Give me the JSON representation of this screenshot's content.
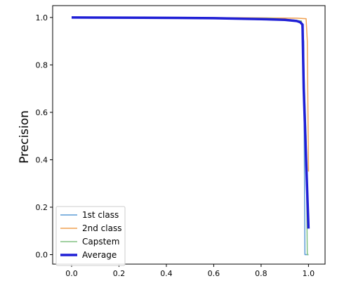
{
  "chart_data": {
    "type": "line",
    "title": "",
    "xlabel": "",
    "ylabel": "Precision",
    "xlim": [
      -0.08,
      1.07
    ],
    "ylim": [
      -0.04,
      1.05
    ],
    "xticks": [
      "0.0",
      "0.2",
      "0.4",
      "0.6",
      "0.8",
      "1.0"
    ],
    "yticks": [
      "0.0",
      "0.2",
      "0.4",
      "0.6",
      "0.8",
      "1.0"
    ],
    "xtick_values": [
      0.0,
      0.2,
      0.4,
      0.6,
      0.8,
      1.0
    ],
    "ytick_values": [
      0.0,
      0.2,
      0.4,
      0.6,
      0.8,
      1.0
    ],
    "grid": false,
    "legend_position": "bottom-left",
    "series": [
      {
        "name": "1st class",
        "color": "#5b9bd5",
        "width": 1.5,
        "points": [
          [
            0.0,
            1.0
          ],
          [
            0.3,
            1.0
          ],
          [
            0.6,
            0.998
          ],
          [
            0.8,
            0.995
          ],
          [
            0.9,
            0.99
          ],
          [
            0.95,
            0.985
          ],
          [
            0.97,
            0.975
          ],
          [
            0.98,
            0.9
          ],
          [
            0.985,
            0.0
          ],
          [
            1.0,
            0.0
          ]
        ]
      },
      {
        "name": "2nd class",
        "color": "#f0a050",
        "width": 1.5,
        "points": [
          [
            0.0,
            1.0
          ],
          [
            0.4,
            1.0
          ],
          [
            0.7,
            0.999
          ],
          [
            0.85,
            0.998
          ],
          [
            0.95,
            0.997
          ],
          [
            0.99,
            0.995
          ],
          [
            0.995,
            0.9
          ],
          [
            1.0,
            0.35
          ]
        ]
      },
      {
        "name": "Capstem",
        "color": "#80c080",
        "width": 1.5,
        "points": [
          [
            0.0,
            1.0
          ],
          [
            0.4,
            1.0
          ],
          [
            0.7,
            0.998
          ],
          [
            0.85,
            0.996
          ],
          [
            0.93,
            0.99
          ],
          [
            0.97,
            0.985
          ],
          [
            0.975,
            0.95
          ],
          [
            0.99,
            0.5
          ],
          [
            0.995,
            0.0
          ],
          [
            1.0,
            0.0
          ]
        ]
      },
      {
        "name": "Average",
        "color": "#1f1fd6",
        "width": 3.5,
        "points": [
          [
            0.0,
            1.0
          ],
          [
            0.3,
            0.999
          ],
          [
            0.6,
            0.997
          ],
          [
            0.8,
            0.993
          ],
          [
            0.9,
            0.99
          ],
          [
            0.95,
            0.985
          ],
          [
            0.965,
            0.98
          ],
          [
            0.975,
            0.97
          ],
          [
            0.98,
            0.7
          ],
          [
            0.99,
            0.4
          ],
          [
            1.0,
            0.11
          ]
        ]
      }
    ]
  }
}
